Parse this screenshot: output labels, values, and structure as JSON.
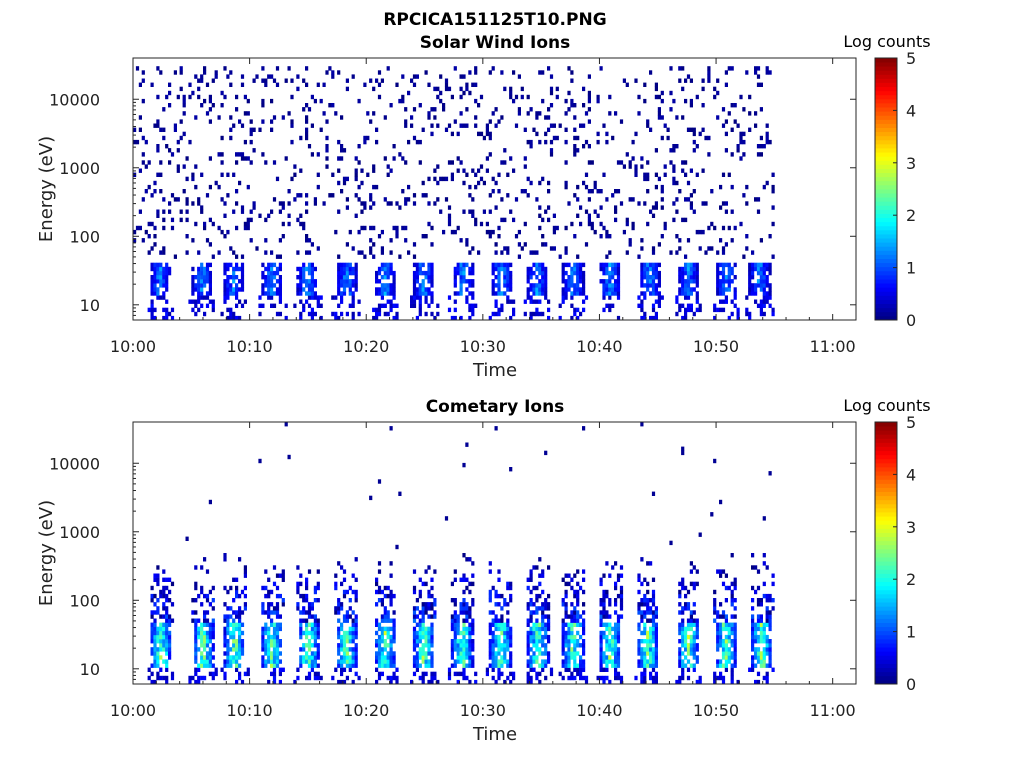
{
  "figure": {
    "title": "RPCICA151125T10.PNG"
  },
  "chart_data": [
    {
      "type": "heatmap",
      "title": "Solar Wind Ions",
      "xlabel": "Time",
      "ylabel": "Energy (eV)",
      "x_ticks": [
        "10:00",
        "10:10",
        "10:20",
        "10:30",
        "10:40",
        "10:50",
        "11:00"
      ],
      "x_range_minutes": [
        0,
        62
      ],
      "data_x_range_minutes": [
        0,
        55
      ],
      "y_scale": "log",
      "y_ticks": [
        "10",
        "100",
        "1000",
        "10000"
      ],
      "y_range_eV": [
        6,
        40000
      ],
      "colorbar": {
        "label": "Log counts",
        "ticks": [
          "0",
          "1",
          "2",
          "3",
          "4",
          "5"
        ],
        "range": [
          0,
          5
        ],
        "colormap": "jet"
      },
      "approx_burst_centers_minutes": [
        2.2,
        5.8,
        8.5,
        11.8,
        14.8,
        18.2,
        21.5,
        24.8,
        28.2,
        31.5,
        34.5,
        37.6,
        40.8,
        44.2,
        47.5,
        50.8,
        53.6
      ],
      "description_values": {
        "band_energy_eV": [
          14,
          40
        ],
        "band_peak_log_counts": 1.6,
        "scatter_energy_eV": [
          50,
          30000
        ],
        "scatter_log_counts": 0.2
      }
    },
    {
      "type": "heatmap",
      "title": "Cometary Ions",
      "xlabel": "Time",
      "ylabel": "Energy (eV)",
      "x_ticks": [
        "10:00",
        "10:10",
        "10:20",
        "10:30",
        "10:40",
        "10:50",
        "11:00"
      ],
      "x_range_minutes": [
        0,
        62
      ],
      "data_x_range_minutes": [
        0,
        55
      ],
      "y_scale": "log",
      "y_ticks": [
        "10",
        "100",
        "1000",
        "10000"
      ],
      "y_range_eV": [
        6,
        40000
      ],
      "colorbar": {
        "label": "Log counts",
        "ticks": [
          "0",
          "1",
          "2",
          "3",
          "4",
          "5"
        ],
        "range": [
          0,
          5
        ],
        "colormap": "jet"
      },
      "approx_burst_centers_minutes": [
        2.3,
        5.9,
        8.6,
        11.8,
        14.9,
        18.2,
        21.5,
        24.8,
        28.1,
        31.4,
        34.6,
        37.6,
        40.8,
        44.0,
        47.5,
        50.7,
        53.8
      ],
      "description_values": {
        "band_energy_eV": [
          10,
          45
        ],
        "band_peak_log_counts": 3.0,
        "plume_energy_eV": [
          45,
          500
        ],
        "plume_log_counts": 1.2
      }
    }
  ]
}
